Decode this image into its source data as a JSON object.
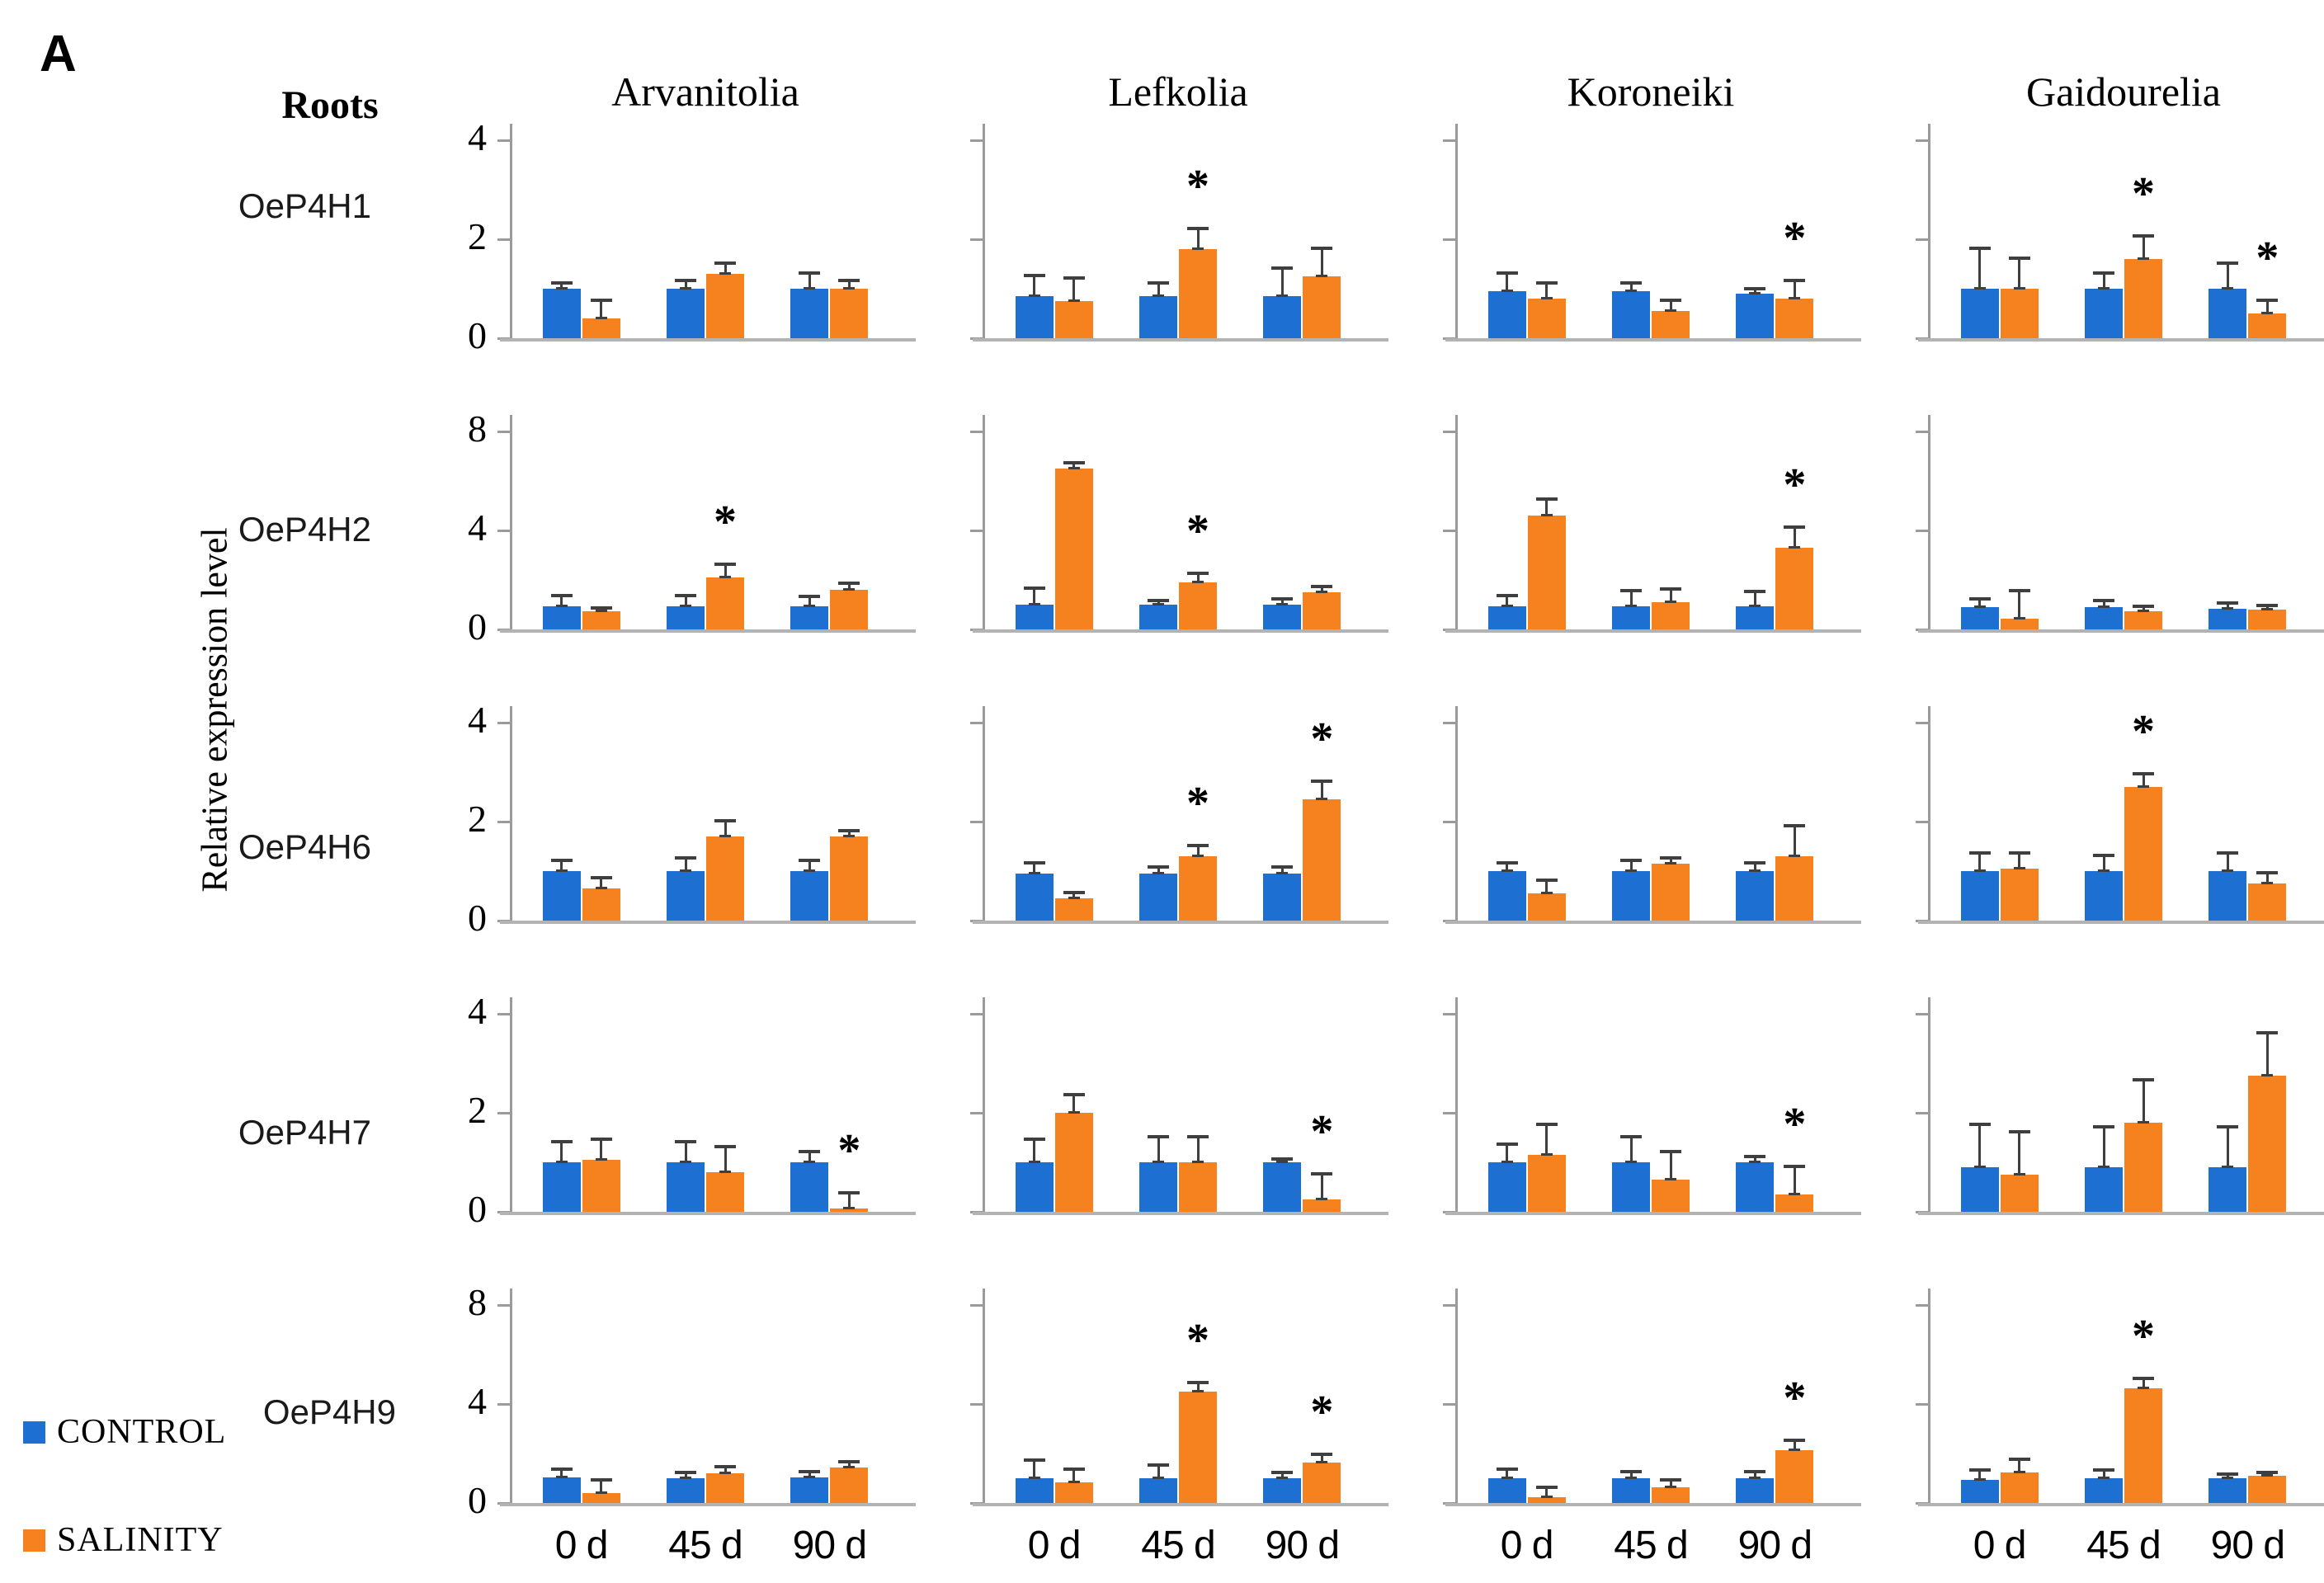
{
  "figure": {
    "panel_label": "A",
    "tissue_label": "Roots",
    "y_axis_label": "Relative expression level",
    "cultivars": [
      "Arvanitolia",
      "Lefkolia",
      "Koroneiki",
      "Gaidourelia"
    ],
    "genes": [
      "OeP4H1",
      "OeP4H2",
      "OeP4H6",
      "OeP4H7",
      "OeP4H9"
    ],
    "timepoints": [
      "0 d",
      "45 d",
      "90 d"
    ],
    "legend": [
      {
        "label": "CONTROL",
        "color": "#1e6fd2"
      },
      {
        "label": "SALINITY",
        "color": "#f5821f"
      }
    ],
    "colors": {
      "control": "#1e6fd2",
      "salinity": "#f5821f",
      "axis": "#9b9b9b",
      "baseline": "#b3b3b3",
      "error_bar": "#3f3f3f",
      "significance": "#000000"
    }
  },
  "chart_data": [
    {
      "type": "bar",
      "gene": "OeP4H1",
      "ylabel": "Relative expression level",
      "categories": [
        "0 d",
        "45 d",
        "90 d"
      ],
      "ylim": [
        0,
        4
      ],
      "yticks": [
        0,
        2,
        4
      ],
      "panels": [
        {
          "cultivar": "Arvanitolia",
          "control": {
            "values": [
              1.0,
              1.0,
              1.0
            ],
            "errors": [
              0.1,
              0.15,
              0.3
            ]
          },
          "salinity": {
            "values": [
              0.4,
              1.3,
              1.0
            ],
            "errors": [
              0.35,
              0.2,
              0.15
            ],
            "sig": [
              false,
              false,
              false
            ]
          }
        },
        {
          "cultivar": "Lefkolia",
          "control": {
            "values": [
              0.85,
              0.85,
              0.85
            ],
            "errors": [
              0.4,
              0.25,
              0.55
            ]
          },
          "salinity": {
            "values": [
              0.75,
              1.8,
              1.25
            ],
            "errors": [
              0.45,
              0.4,
              0.55
            ],
            "sig": [
              false,
              true,
              false
            ]
          }
        },
        {
          "cultivar": "Koroneiki",
          "control": {
            "values": [
              0.95,
              0.95,
              0.9
            ],
            "errors": [
              0.35,
              0.15,
              0.08
            ]
          },
          "salinity": {
            "values": [
              0.8,
              0.55,
              0.8
            ],
            "errors": [
              0.3,
              0.2,
              0.35
            ],
            "sig": [
              false,
              false,
              true
            ]
          }
        },
        {
          "cultivar": "Gaidourelia",
          "control": {
            "values": [
              1.0,
              1.0,
              1.0
            ],
            "errors": [
              0.8,
              0.3,
              0.5
            ]
          },
          "salinity": {
            "values": [
              1.0,
              1.6,
              0.5
            ],
            "errors": [
              0.6,
              0.45,
              0.25
            ],
            "sig": [
              false,
              true,
              true
            ]
          }
        }
      ]
    },
    {
      "type": "bar",
      "gene": "OeP4H2",
      "ylabel": "Relative expression level",
      "categories": [
        "0 d",
        "45 d",
        "90 d"
      ],
      "ylim": [
        0,
        8
      ],
      "yticks": [
        0,
        4,
        8
      ],
      "panels": [
        {
          "cultivar": "Arvanitolia",
          "control": {
            "values": [
              0.95,
              0.95,
              0.95
            ],
            "errors": [
              0.4,
              0.4,
              0.35
            ]
          },
          "salinity": {
            "values": [
              0.75,
              2.1,
              1.6
            ],
            "errors": [
              0.1,
              0.5,
              0.25
            ],
            "sig": [
              false,
              true,
              false
            ]
          }
        },
        {
          "cultivar": "Lefkolia",
          "control": {
            "values": [
              1.0,
              1.0,
              1.0
            ],
            "errors": [
              0.65,
              0.15,
              0.2
            ]
          },
          "salinity": {
            "values": [
              6.5,
              1.9,
              1.5
            ],
            "errors": [
              0.2,
              0.35,
              0.2
            ],
            "sig": [
              false,
              true,
              false
            ]
          }
        },
        {
          "cultivar": "Koroneiki",
          "control": {
            "values": [
              0.95,
              0.95,
              0.95
            ],
            "errors": [
              0.4,
              0.6,
              0.55
            ]
          },
          "salinity": {
            "values": [
              4.6,
              1.1,
              3.3
            ],
            "errors": [
              0.65,
              0.5,
              0.8
            ],
            "sig": [
              false,
              false,
              true
            ]
          }
        },
        {
          "cultivar": "Gaidourelia",
          "control": {
            "values": [
              0.9,
              0.9,
              0.85
            ],
            "errors": [
              0.3,
              0.25,
              0.2
            ]
          },
          "salinity": {
            "values": [
              0.45,
              0.75,
              0.8
            ],
            "errors": [
              1.1,
              0.15,
              0.15
            ],
            "sig": [
              false,
              false,
              false
            ]
          }
        }
      ]
    },
    {
      "type": "bar",
      "gene": "OeP4H6",
      "ylabel": "Relative expression level",
      "categories": [
        "0 d",
        "45 d",
        "90 d"
      ],
      "ylim": [
        0,
        4
      ],
      "yticks": [
        0,
        2,
        4
      ],
      "panels": [
        {
          "cultivar": "Arvanitolia",
          "control": {
            "values": [
              1.0,
              1.0,
              1.0
            ],
            "errors": [
              0.2,
              0.25,
              0.2
            ]
          },
          "salinity": {
            "values": [
              0.65,
              1.7,
              1.7
            ],
            "errors": [
              0.2,
              0.3,
              0.1
            ],
            "sig": [
              false,
              false,
              false
            ]
          }
        },
        {
          "cultivar": "Lefkolia",
          "control": {
            "values": [
              0.95,
              0.95,
              0.95
            ],
            "errors": [
              0.2,
              0.12,
              0.12
            ]
          },
          "salinity": {
            "values": [
              0.45,
              1.3,
              2.45
            ],
            "errors": [
              0.1,
              0.2,
              0.35
            ],
            "sig": [
              false,
              true,
              true
            ]
          }
        },
        {
          "cultivar": "Koroneiki",
          "control": {
            "values": [
              1.0,
              1.0,
              1.0
            ],
            "errors": [
              0.15,
              0.2,
              0.15
            ]
          },
          "salinity": {
            "values": [
              0.55,
              1.15,
              1.3
            ],
            "errors": [
              0.25,
              0.1,
              0.6
            ],
            "sig": [
              false,
              false,
              false
            ]
          }
        },
        {
          "cultivar": "Gaidourelia",
          "control": {
            "values": [
              1.0,
              1.0,
              1.0
            ],
            "errors": [
              0.35,
              0.3,
              0.35
            ]
          },
          "salinity": {
            "values": [
              1.05,
              2.7,
              0.75
            ],
            "errors": [
              0.3,
              0.25,
              0.2
            ],
            "sig": [
              false,
              true,
              false
            ]
          }
        }
      ]
    },
    {
      "type": "bar",
      "gene": "OeP4H7",
      "ylabel": "Relative expression level",
      "categories": [
        "0 d",
        "45 d",
        "90 d"
      ],
      "ylim": [
        0,
        4
      ],
      "yticks": [
        0,
        2,
        4
      ],
      "panels": [
        {
          "cultivar": "Arvanitolia",
          "control": {
            "values": [
              1.0,
              1.0,
              1.0
            ],
            "errors": [
              0.4,
              0.4,
              0.2
            ]
          },
          "salinity": {
            "values": [
              1.05,
              0.8,
              0.07
            ],
            "errors": [
              0.4,
              0.5,
              0.3
            ],
            "sig": [
              false,
              false,
              true
            ]
          }
        },
        {
          "cultivar": "Lefkolia",
          "control": {
            "values": [
              1.0,
              1.0,
              1.0
            ],
            "errors": [
              0.45,
              0.5,
              0.05
            ]
          },
          "salinity": {
            "values": [
              2.0,
              1.0,
              0.25
            ],
            "errors": [
              0.35,
              0.5,
              0.5
            ],
            "sig": [
              false,
              false,
              true
            ]
          }
        },
        {
          "cultivar": "Koroneiki",
          "control": {
            "values": [
              1.0,
              1.0,
              1.0
            ],
            "errors": [
              0.35,
              0.5,
              0.1
            ]
          },
          "salinity": {
            "values": [
              1.15,
              0.65,
              0.35
            ],
            "errors": [
              0.6,
              0.55,
              0.55
            ],
            "sig": [
              false,
              false,
              true
            ]
          }
        },
        {
          "cultivar": "Gaidourelia",
          "control": {
            "values": [
              0.9,
              0.9,
              0.9
            ],
            "errors": [
              0.85,
              0.8,
              0.8
            ]
          },
          "salinity": {
            "values": [
              0.75,
              1.8,
              2.75
            ],
            "errors": [
              0.85,
              0.85,
              0.85
            ],
            "sig": [
              false,
              false,
              false
            ]
          }
        }
      ]
    },
    {
      "type": "bar",
      "gene": "OeP4H9",
      "ylabel": "Relative expression level",
      "categories": [
        "0 d",
        "45 d",
        "90 d"
      ],
      "ylim": [
        0,
        8
      ],
      "yticks": [
        0,
        4,
        8
      ],
      "panels": [
        {
          "cultivar": "Arvanitolia",
          "control": {
            "values": [
              1.05,
              1.0,
              1.05
            ],
            "errors": [
              0.3,
              0.2,
              0.2
            ]
          },
          "salinity": {
            "values": [
              0.4,
              1.2,
              1.45
            ],
            "errors": [
              0.5,
              0.25,
              0.2
            ],
            "sig": [
              false,
              false,
              false
            ]
          }
        },
        {
          "cultivar": "Lefkolia",
          "control": {
            "values": [
              1.0,
              1.0,
              1.0
            ],
            "errors": [
              0.7,
              0.5,
              0.2
            ]
          },
          "salinity": {
            "values": [
              0.85,
              4.5,
              1.65
            ],
            "errors": [
              0.5,
              0.35,
              0.3
            ],
            "sig": [
              false,
              true,
              true
            ]
          }
        },
        {
          "cultivar": "Koroneiki",
          "control": {
            "values": [
              1.0,
              1.0,
              1.0
            ],
            "errors": [
              0.35,
              0.25,
              0.25
            ]
          },
          "salinity": {
            "values": [
              0.25,
              0.65,
              2.15
            ],
            "errors": [
              0.35,
              0.25,
              0.35
            ],
            "sig": [
              false,
              false,
              true
            ]
          }
        },
        {
          "cultivar": "Gaidourelia",
          "control": {
            "values": [
              0.95,
              1.0,
              1.0
            ],
            "errors": [
              0.35,
              0.3,
              0.15
            ]
          },
          "salinity": {
            "values": [
              1.25,
              4.65,
              1.1
            ],
            "errors": [
              0.5,
              0.35,
              0.1
            ],
            "sig": [
              false,
              true,
              false
            ]
          }
        }
      ]
    }
  ]
}
